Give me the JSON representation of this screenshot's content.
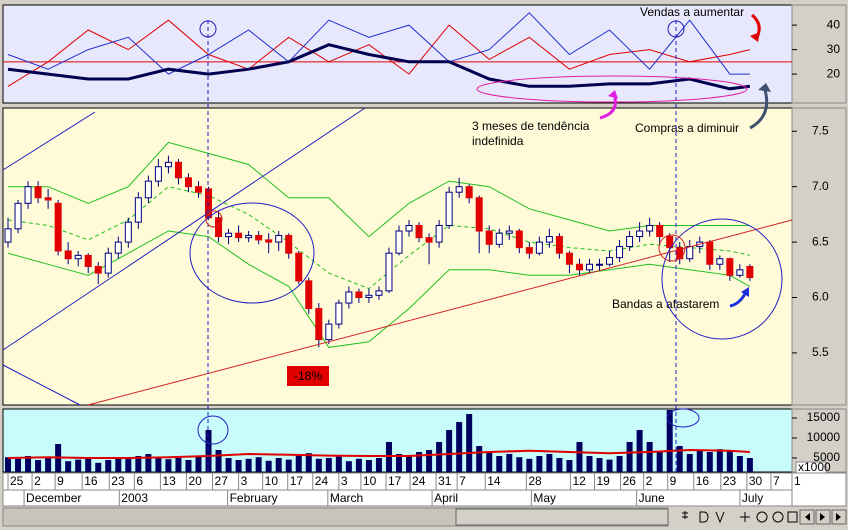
{
  "chart_data": [
    {
      "type": "line",
      "background": "#e8e8fc",
      "xlim": [
        -0.5,
        78.2
      ],
      "ylim": [
        8.2,
        48.2
      ],
      "yticks": [
        20,
        30,
        40
      ],
      "hline": 25,
      "hline_color": "#e00000",
      "x": [
        0,
        4,
        8,
        12,
        16,
        20,
        24,
        28,
        32,
        36,
        40,
        44,
        48,
        52,
        56,
        60,
        64,
        68,
        72,
        74
      ],
      "series": [
        {
          "color": "#e00000",
          "line_width": 1,
          "values": [
            15,
            25,
            38,
            30,
            42,
            28,
            22,
            35,
            25,
            32,
            20,
            40,
            26,
            35,
            22,
            28,
            30,
            25,
            28,
            30
          ]
        },
        {
          "color": "#2030d0",
          "line_width": 1,
          "values": [
            28,
            22,
            30,
            35,
            20,
            28,
            38,
            25,
            42,
            35,
            40,
            25,
            30,
            45,
            28,
            38,
            22,
            42,
            20,
            20
          ]
        },
        {
          "color": "#000050",
          "line_width": 3,
          "values": [
            22,
            20,
            18,
            18,
            22,
            20,
            22,
            25,
            32,
            28,
            25,
            25,
            18,
            15,
            15,
            16,
            16,
            18,
            14,
            15
          ]
        }
      ],
      "annotations": [
        "Vendas a aumentar",
        "Compras a diminuir"
      ]
    },
    {
      "type": "candlestick",
      "background": "#fffbd8",
      "xlim": [
        -0.5,
        78.2
      ],
      "ylim": [
        5.03,
        7.71
      ],
      "yticks": [
        5.5,
        {
          "value": 6,
          "label": "6.0"
        },
        6.5,
        {
          "value": 7,
          "label": "7.0"
        },
        7.5
      ],
      "up_color": "#ffffff",
      "down_color": "#e00000",
      "outline_color": "#000080",
      "ohlc": [
        [
          6.5,
          6.72,
          6.45,
          6.62
        ],
        [
          6.62,
          6.88,
          6.58,
          6.85
        ],
        [
          6.85,
          7.05,
          6.8,
          7.0
        ],
        [
          7.0,
          7.05,
          6.85,
          6.9
        ],
        [
          6.9,
          6.98,
          6.8,
          6.88
        ],
        [
          6.85,
          6.88,
          6.38,
          6.42
        ],
        [
          6.42,
          6.5,
          6.3,
          6.35
        ],
        [
          6.35,
          6.42,
          6.28,
          6.38
        ],
        [
          6.38,
          6.4,
          6.22,
          6.28
        ],
        [
          6.28,
          6.32,
          6.12,
          6.22
        ],
        [
          6.22,
          6.45,
          6.18,
          6.4
        ],
        [
          6.4,
          6.55,
          6.35,
          6.5
        ],
        [
          6.5,
          6.72,
          6.45,
          6.68
        ],
        [
          6.68,
          6.95,
          6.62,
          6.9
        ],
        [
          6.9,
          7.1,
          6.85,
          7.05
        ],
        [
          7.05,
          7.25,
          7.0,
          7.18
        ],
        [
          7.18,
          7.28,
          7.12,
          7.22
        ],
        [
          7.22,
          7.25,
          7.02,
          7.08
        ],
        [
          7.08,
          7.12,
          6.95,
          7.0
        ],
        [
          7.0,
          7.05,
          6.9,
          6.95
        ],
        [
          6.98,
          7.0,
          6.7,
          6.72
        ],
        [
          6.72,
          6.78,
          6.5,
          6.55
        ],
        [
          6.55,
          6.62,
          6.48,
          6.58
        ],
        [
          6.58,
          6.65,
          6.5,
          6.54
        ],
        [
          6.54,
          6.6,
          6.5,
          6.56
        ],
        [
          6.56,
          6.6,
          6.48,
          6.52
        ],
        [
          6.52,
          6.58,
          6.4,
          6.5
        ],
        [
          6.5,
          6.6,
          6.42,
          6.56
        ],
        [
          6.56,
          6.58,
          6.35,
          6.4
        ],
        [
          6.4,
          6.42,
          6.12,
          6.15
        ],
        [
          6.15,
          6.18,
          5.85,
          5.9
        ],
        [
          5.9,
          5.95,
          5.55,
          5.62
        ],
        [
          5.62,
          5.8,
          5.58,
          5.76
        ],
        [
          5.76,
          5.98,
          5.72,
          5.95
        ],
        [
          5.95,
          6.1,
          5.9,
          6.05
        ],
        [
          6.05,
          6.08,
          5.95,
          6.0
        ],
        [
          6.0,
          6.08,
          5.95,
          6.02
        ],
        [
          6.02,
          6.1,
          5.98,
          6.06
        ],
        [
          6.06,
          6.45,
          6.04,
          6.4
        ],
        [
          6.4,
          6.65,
          6.38,
          6.6
        ],
        [
          6.6,
          6.7,
          6.55,
          6.65
        ],
        [
          6.65,
          6.68,
          6.5,
          6.54
        ],
        [
          6.54,
          6.58,
          6.3,
          6.5
        ],
        [
          6.5,
          6.7,
          6.45,
          6.65
        ],
        [
          6.65,
          7.0,
          6.62,
          6.95
        ],
        [
          6.95,
          7.08,
          6.9,
          7.0
        ],
        [
          7.0,
          7.02,
          6.85,
          6.9
        ],
        [
          6.9,
          6.92,
          6.4,
          6.6
        ],
        [
          6.6,
          6.65,
          6.4,
          6.48
        ],
        [
          6.48,
          6.62,
          6.45,
          6.58
        ],
        [
          6.58,
          6.65,
          6.52,
          6.6
        ],
        [
          6.6,
          6.62,
          6.4,
          6.45
        ],
        [
          6.45,
          6.5,
          6.35,
          6.4
        ],
        [
          6.4,
          6.55,
          6.38,
          6.5
        ],
        [
          6.5,
          6.62,
          6.45,
          6.55
        ],
        [
          6.55,
          6.58,
          6.35,
          6.4
        ],
        [
          6.4,
          6.42,
          6.22,
          6.3
        ],
        [
          6.3,
          6.35,
          6.2,
          6.25
        ],
        [
          6.25,
          6.35,
          6.22,
          6.3
        ],
        [
          6.3,
          6.35,
          6.24,
          6.3
        ],
        [
          6.3,
          6.42,
          6.28,
          6.36
        ],
        [
          6.36,
          6.52,
          6.32,
          6.46
        ],
        [
          6.46,
          6.6,
          6.42,
          6.55
        ],
        [
          6.55,
          6.68,
          6.5,
          6.6
        ],
        [
          6.6,
          6.72,
          6.55,
          6.65
        ],
        [
          6.65,
          6.68,
          6.48,
          6.55
        ],
        [
          6.55,
          6.58,
          6.32,
          6.45
        ],
        [
          6.45,
          6.5,
          6.3,
          6.35
        ],
        [
          6.35,
          6.52,
          6.32,
          6.46
        ],
        [
          6.46,
          6.55,
          6.4,
          6.5
        ],
        [
          6.5,
          6.52,
          6.25,
          6.3
        ],
        [
          6.3,
          6.38,
          6.25,
          6.35
        ],
        [
          6.35,
          6.36,
          6.15,
          6.2
        ],
        [
          6.2,
          6.3,
          6.18,
          6.25
        ],
        [
          6.28,
          6.3,
          6.15,
          6.18
        ]
      ],
      "overlays": {
        "x": [
          0,
          4,
          8,
          12,
          16,
          20,
          24,
          28,
          32,
          36,
          40,
          44,
          48,
          52,
          56,
          60,
          64,
          68,
          72,
          74
        ],
        "series": [
          {
            "color": "#20c020",
            "dashed": false,
            "values": [
              7.0,
              7.0,
              6.85,
              7.0,
              7.4,
              7.3,
              7.2,
              6.9,
              6.9,
              6.55,
              6.85,
              7.05,
              7.0,
              6.8,
              6.7,
              6.6,
              6.65,
              6.65,
              6.65,
              6.65
            ]
          },
          {
            "color": "#20c020",
            "dashed": true,
            "values": [
              6.7,
              6.65,
              6.52,
              6.7,
              7.0,
              6.92,
              6.75,
              6.5,
              6.22,
              6.08,
              6.38,
              6.65,
              6.62,
              6.5,
              6.45,
              6.42,
              6.48,
              6.45,
              6.42,
              6.38
            ]
          },
          {
            "color": "#20c020",
            "dashed": false,
            "values": [
              6.4,
              6.3,
              6.2,
              6.4,
              6.6,
              6.55,
              6.3,
              6.1,
              5.55,
              5.6,
              5.9,
              6.25,
              6.25,
              6.2,
              6.2,
              6.25,
              6.3,
              6.25,
              6.2,
              6.1
            ]
          }
        ]
      },
      "annotations": [
        "3 meses de tendência",
        "indefinida",
        "Bandas a afastarem",
        "-18%"
      ]
    },
    {
      "type": "bar",
      "background": "#c8fcfc",
      "color": "#000060",
      "xlim": [
        -0.5,
        78.2
      ],
      "ylim": [
        1500,
        17250
      ],
      "yticks": [
        5000,
        10000,
        15000
      ],
      "ylabel": "x1000",
      "values": [
        5200,
        4800,
        5500,
        4500,
        5000,
        8500,
        4200,
        4600,
        5000,
        3800,
        4500,
        5200,
        4800,
        5500,
        6000,
        5200,
        4700,
        5000,
        4500,
        5300,
        12000,
        7000,
        5000,
        4500,
        4800,
        5200,
        4300,
        5000,
        4600,
        5500,
        6200,
        4800,
        5000,
        5500,
        4200,
        4800,
        4500,
        5000,
        9000,
        6000,
        5500,
        6500,
        7000,
        9000,
        12000,
        14000,
        16000,
        8000,
        6500,
        5500,
        6000,
        5200,
        4800,
        5500,
        6000,
        5000,
        4500,
        9000,
        5500,
        5000,
        4600,
        5500,
        9000,
        12000,
        9000,
        6500,
        17000,
        8000,
        6000,
        7000,
        6500,
        7200,
        6800,
        5500,
        5000
      ],
      "avg": {
        "color": "#e00000",
        "x": [
          0,
          4,
          8,
          12,
          16,
          20,
          24,
          28,
          32,
          36,
          40,
          44,
          48,
          52,
          56,
          60,
          64,
          68,
          72,
          74
        ],
        "values": [
          5000,
          5200,
          5000,
          5000,
          5200,
          5500,
          6000,
          5800,
          5600,
          5500,
          5500,
          6000,
          6500,
          6800,
          6500,
          6200,
          6500,
          7000,
          6800,
          6500
        ]
      },
      "xticks": [
        {
          "value": 0,
          "label": "25"
        },
        {
          "value": 2.4,
          "label": "2"
        },
        {
          "value": 4.7,
          "label": "9"
        },
        {
          "value": 7.4,
          "label": "16"
        },
        {
          "value": 10.1,
          "label": "23"
        },
        {
          "value": 12.6,
          "label": "6"
        },
        {
          "value": 15.2,
          "label": "13"
        },
        {
          "value": 17.8,
          "label": "20"
        },
        {
          "value": 20.4,
          "label": "27"
        },
        {
          "value": 23,
          "label": "3"
        },
        {
          "value": 25.4,
          "label": "10"
        },
        {
          "value": 27.9,
          "label": "17"
        },
        {
          "value": 30.4,
          "label": "24"
        },
        {
          "value": 33,
          "label": "3"
        },
        {
          "value": 35.2,
          "label": "10"
        },
        {
          "value": 37.7,
          "label": "17"
        },
        {
          "value": 40.1,
          "label": "24"
        },
        {
          "value": 42.7,
          "label": "31"
        },
        {
          "value": 44.8,
          "label": "7"
        },
        {
          "value": 47.6,
          "label": "14"
        },
        {
          "value": 51.7,
          "label": "28"
        },
        {
          "value": 56.1,
          "label": "12"
        },
        {
          "value": 58.5,
          "label": "19"
        },
        {
          "value": 61.1,
          "label": "26"
        },
        {
          "value": 63.4,
          "label": "2"
        },
        {
          "value": 65.8,
          "label": "9"
        },
        {
          "value": 68.4,
          "label": "16"
        },
        {
          "value": 71.1,
          "label": "23"
        },
        {
          "value": 73.7,
          "label": "30"
        },
        {
          "value": 76.1,
          "label": "7"
        },
        {
          "value": 78.2,
          "label": "1"
        }
      ],
      "xticks2": [
        {
          "value": 1.9,
          "label": "December"
        },
        {
          "value": 11.4,
          "label": "2003"
        },
        {
          "value": 22.2,
          "label": "February"
        },
        {
          "value": 32.2,
          "label": "March"
        },
        {
          "value": 42.6,
          "label": "April"
        },
        {
          "value": 52.5,
          "label": "May"
        },
        {
          "value": 63,
          "label": "June"
        },
        {
          "value": 73.3,
          "label": "July"
        }
      ]
    }
  ]
}
